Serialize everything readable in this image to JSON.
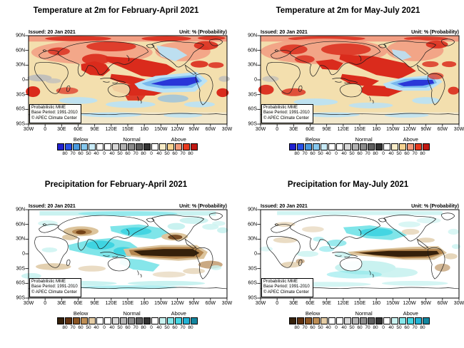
{
  "figure": {
    "issued_label": "Issued: 20 Jan 2021",
    "unit_label": "Unit: % (Probability)",
    "annotation_lines": [
      "Probabilistic MME",
      "Base Period: 1991-2010",
      "© APEC Climate Center"
    ],
    "lat_ticks": [
      "90N",
      "60N",
      "30N",
      "0",
      "30S",
      "60S",
      "90S"
    ],
    "lon_ticks": [
      "30W",
      "0",
      "30E",
      "60E",
      "90E",
      "120E",
      "150E",
      "180",
      "150W",
      "120W",
      "90W",
      "60W",
      "30W"
    ]
  },
  "panels": [
    {
      "title": "Temperature at 2m for February-April 2021",
      "type": "temperature",
      "variant": "feb_apr"
    },
    {
      "title": "Temperature at 2m for May-July 2021",
      "type": "temperature",
      "variant": "may_jul"
    },
    {
      "title": "Precipitation for February-April 2021",
      "type": "precipitation",
      "variant": "feb_apr"
    },
    {
      "title": "Precipitation for May-July 2021",
      "type": "precipitation",
      "variant": "may_jul"
    }
  ],
  "colorbars": {
    "temperature": {
      "section_labels": [
        "Below",
        "Normal",
        "Above"
      ],
      "boundary_values": [
        "80",
        "70",
        "60",
        "50",
        "40",
        "0",
        "40",
        "50",
        "60",
        "70",
        "80",
        "0",
        "40",
        "50",
        "60",
        "70",
        "80"
      ],
      "cell_colors": [
        "#2121cf",
        "#2a52e8",
        "#4a9ae0",
        "#86c8ee",
        "#c8eaf6",
        "#ffffff",
        "#ffffff",
        "#d8d8d8",
        "#b2b2b2",
        "#8c8c8c",
        "#5f5f5f",
        "#333333",
        "#ffffff",
        "#f8ecc8",
        "#f6d391",
        "#f39a7b",
        "#e83a1f",
        "#c01812"
      ]
    },
    "precipitation": {
      "section_labels": [
        "Below",
        "Normal",
        "Above"
      ],
      "boundary_values": [
        "80",
        "70",
        "60",
        "50",
        "40",
        "0",
        "40",
        "50",
        "60",
        "70",
        "80",
        "0",
        "40",
        "50",
        "60",
        "70",
        "80"
      ],
      "cell_colors": [
        "#35200a",
        "#5f3110",
        "#8a5423",
        "#bd8d55",
        "#e3cba4",
        "#ffffff",
        "#ffffff",
        "#d8d8d8",
        "#b2b2b2",
        "#8c8c8c",
        "#5f5f5f",
        "#333333",
        "#ffffff",
        "#c9f2f0",
        "#86e7ea",
        "#45d6e2",
        "#22b2d4",
        "#13869f"
      ]
    }
  }
}
